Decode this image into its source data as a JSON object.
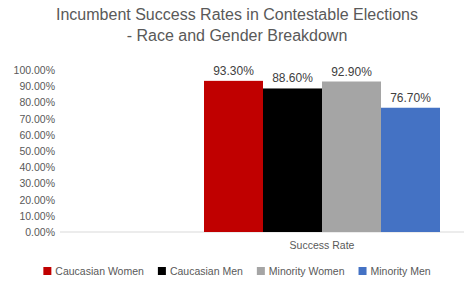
{
  "chart_data": {
    "type": "bar",
    "title": "Incumbent Success Rates in Contestable Elections - Race and Gender Breakdown",
    "categories": [
      "Success Rate"
    ],
    "series": [
      {
        "name": "Caucasian Women",
        "color": "#c00000",
        "values": [
          93.3
        ],
        "value_labels": [
          "93.30%"
        ]
      },
      {
        "name": "Caucasian Men",
        "color": "#000000",
        "values": [
          88.6
        ],
        "value_labels": [
          "88.60%"
        ]
      },
      {
        "name": "Minority Women",
        "color": "#a5a5a5",
        "values": [
          92.9
        ],
        "value_labels": [
          "92.90%"
        ]
      },
      {
        "name": "Minority Men",
        "color": "#4472c4",
        "values": [
          76.7
        ],
        "value_labels": [
          "76.70%"
        ]
      }
    ],
    "ylim": [
      0,
      100
    ],
    "yticks": [
      {
        "value": 0,
        "label": "0.00%"
      },
      {
        "value": 10,
        "label": "10.00%"
      },
      {
        "value": 20,
        "label": "20.00%"
      },
      {
        "value": 30,
        "label": "30.00%"
      },
      {
        "value": 40,
        "label": "40.00%"
      },
      {
        "value": 50,
        "label": "50.00%"
      },
      {
        "value": 60,
        "label": "60.00%"
      },
      {
        "value": 70,
        "label": "70.00%"
      },
      {
        "value": 80,
        "label": "80.00%"
      },
      {
        "value": 90,
        "label": "90.00%"
      },
      {
        "value": 100,
        "label": "100.00%"
      }
    ],
    "grid": false,
    "legend": "bottom",
    "data_labels": true
  }
}
